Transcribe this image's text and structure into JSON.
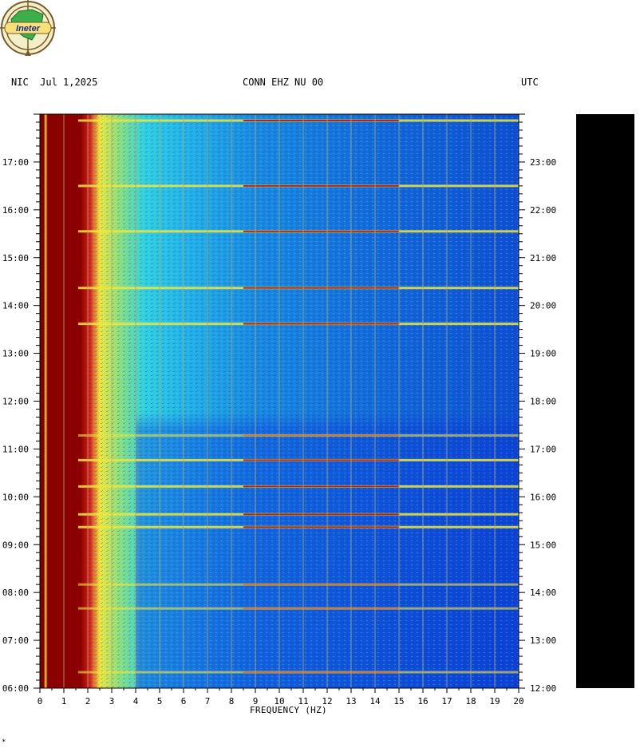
{
  "header": {
    "left": "NIC  Jul 1,2025",
    "center": "CONN EHZ NU 00",
    "right": "UTC"
  },
  "logo": {
    "text": "Ineter"
  },
  "footer_mark": "*",
  "colors": {
    "low": "#0a2fd6",
    "mid": "#25c6e8",
    "high": "#f0e63c",
    "peak": "#8b0000",
    "grid": "#a8a878"
  },
  "chart_data": {
    "type": "heatmap",
    "title": "CONN EHZ NU 00",
    "xlabel": "FREQUENCY (HZ)",
    "xlim": [
      0,
      20
    ],
    "x_ticks": [
      "0",
      "1",
      "2",
      "3",
      "4",
      "5",
      "6",
      "7",
      "8",
      "9",
      "10",
      "11",
      "12",
      "13",
      "14",
      "15",
      "16",
      "17",
      "18",
      "19",
      "20"
    ],
    "y_ticks_left": [
      "06:00",
      "07:00",
      "08:00",
      "09:00",
      "10:00",
      "11:00",
      "12:00",
      "13:00",
      "14:00",
      "15:00",
      "16:00",
      "17:00"
    ],
    "y_ticks_right": [
      "12:00",
      "13:00",
      "14:00",
      "15:00",
      "16:00",
      "17:00",
      "18:00",
      "19:00",
      "20:00",
      "21:00",
      "22:00",
      "23:00"
    ],
    "time_range_left": [
      "06:00",
      "18:00"
    ],
    "high_energy_band_hz": [
      0.3,
      2.0
    ],
    "horizontal_energy_lines_utc": [
      {
        "time": "23:52",
        "strength": "high"
      },
      {
        "time": "22:30",
        "strength": "high"
      },
      {
        "time": "21:33",
        "strength": "high"
      },
      {
        "time": "20:22",
        "strength": "high"
      },
      {
        "time": "19:37",
        "strength": "high"
      },
      {
        "time": "17:17",
        "strength": "medium"
      },
      {
        "time": "16:46",
        "strength": "high"
      },
      {
        "time": "16:13",
        "strength": "high"
      },
      {
        "time": "15:38",
        "strength": "high"
      },
      {
        "time": "15:22",
        "strength": "high"
      },
      {
        "time": "14:10",
        "strength": "medium"
      },
      {
        "time": "13:40",
        "strength": "medium"
      },
      {
        "time": "12:20",
        "strength": "medium"
      }
    ]
  }
}
